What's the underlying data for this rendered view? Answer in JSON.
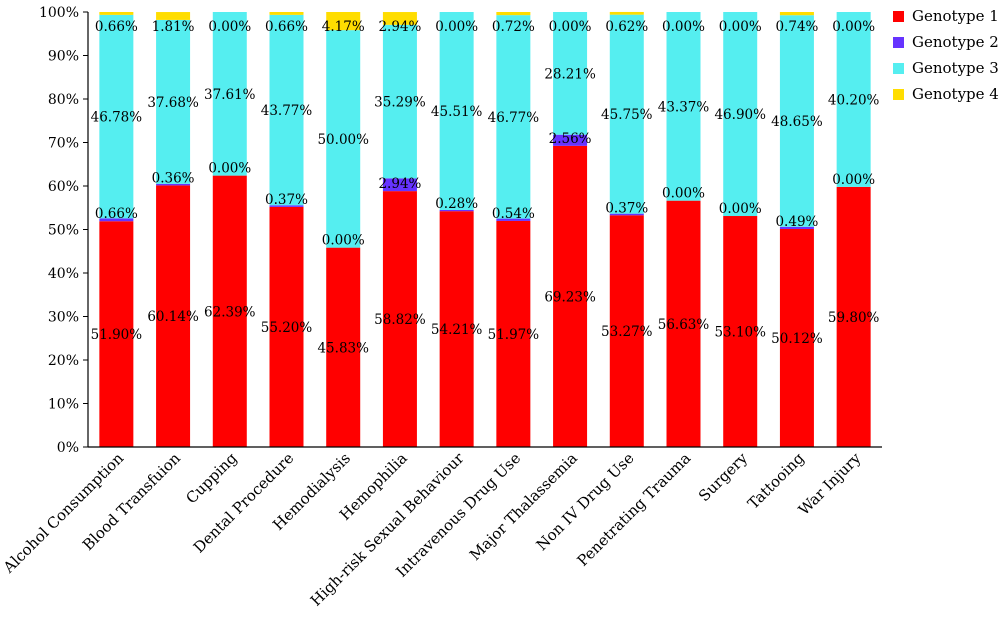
{
  "chart_data": {
    "type": "bar",
    "stacked": true,
    "percent": true,
    "categories": [
      "Alcohol Consumption",
      "Blood Transfuion",
      "Cupping",
      "Dental Procedure",
      "Hemodialysis",
      "Hemophilia",
      "High-risk Sexual Behaviour",
      "Intravenous Drug Use",
      "Major Thalassemia",
      "Non IV Drug Use",
      "Penetrating Trauma",
      "Surgery",
      "Tattooing",
      "War Injury"
    ],
    "series": [
      {
        "name": "Genotype 1",
        "color": "#ff0000",
        "values": [
          51.9,
          60.14,
          62.39,
          55.2,
          45.83,
          58.82,
          54.21,
          51.97,
          69.23,
          53.27,
          56.63,
          53.1,
          50.12,
          59.8
        ],
        "labels": [
          "51.90%",
          "60.14%",
          "62.39%",
          "55.20%",
          "45.83%",
          "58.82%",
          "54.21%",
          "51.97%",
          "69.23%",
          "53.27%",
          "56.63%",
          "53.10%",
          "50.12%",
          "59.80%"
        ]
      },
      {
        "name": "Genotype 2",
        "color": "#6633ff",
        "values": [
          0.66,
          0.36,
          0.0,
          0.37,
          0.0,
          2.94,
          0.28,
          0.54,
          2.56,
          0.37,
          0.0,
          0.0,
          0.49,
          0.0
        ],
        "labels": [
          "0.66%",
          "0.36%",
          "0.00%",
          "0.37%",
          "0.00%",
          "2.94%",
          "0.28%",
          "0.54%",
          "2.56%",
          "0.37%",
          "0.00%",
          "0.00%",
          "0.49%",
          "0.00%"
        ]
      },
      {
        "name": "Genotype 3",
        "color": "#55eef0",
        "values": [
          46.78,
          37.68,
          37.61,
          43.77,
          50.0,
          35.29,
          45.51,
          46.77,
          28.21,
          45.75,
          43.37,
          46.9,
          48.65,
          40.2
        ],
        "labels": [
          "46.78%",
          "37.68%",
          "37.61%",
          "43.77%",
          "50.00%",
          "35.29%",
          "45.51%",
          "46.77%",
          "28.21%",
          "45.75%",
          "43.37%",
          "46.90%",
          "48.65%",
          "40.20%"
        ]
      },
      {
        "name": "Genotype 4",
        "color": "#ffdd00",
        "values": [
          0.66,
          1.81,
          0.0,
          0.66,
          4.17,
          2.94,
          0.0,
          0.72,
          0.0,
          0.62,
          0.0,
          0.0,
          0.74,
          0.0
        ],
        "labels": [
          "0.66%",
          "1.81%",
          "0.00%",
          "0.66%",
          "4.17%",
          "2.94%",
          "0.00%",
          "0.72%",
          "0.00%",
          "0.62%",
          "0.00%",
          "0.00%",
          "0.74%",
          "0.00%"
        ]
      }
    ],
    "yticks": [
      "0%",
      "10%",
      "20%",
      "30%",
      "40%",
      "50%",
      "60%",
      "70%",
      "80%",
      "90%",
      "100%"
    ],
    "ylim": [
      0,
      100
    ],
    "title": "",
    "xlabel": "",
    "ylabel": "",
    "grid": false,
    "legend": "right"
  }
}
